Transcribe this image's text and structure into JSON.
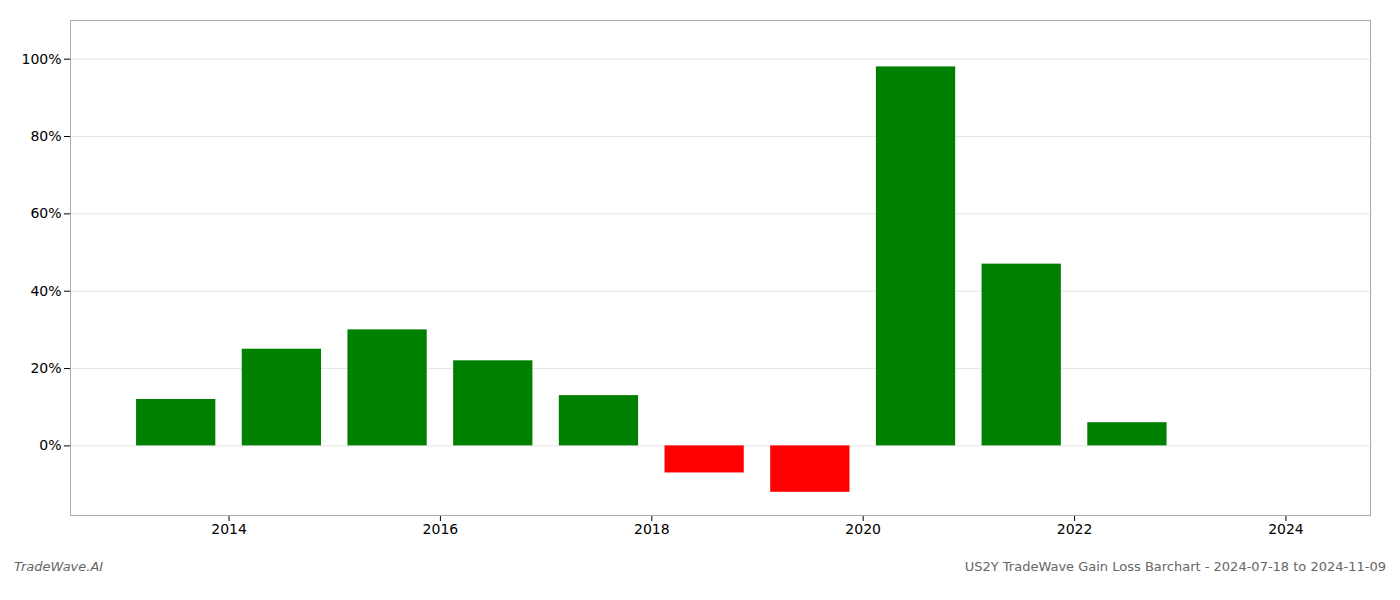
{
  "chart_data": {
    "type": "bar",
    "title": "US2Y TradeWave Gain Loss Barchart - 2024-07-18 to 2024-11-09",
    "annotations": [
      "TradeWave.AI"
    ],
    "x": [
      2013.5,
      2014.5,
      2015.5,
      2016.5,
      2017.5,
      2018.5,
      2019.5,
      2020.5,
      2021.5,
      2022.5,
      2023.5
    ],
    "values": [
      0.12,
      0.25,
      0.3,
      0.22,
      0.13,
      -0.07,
      -0.12,
      0.98,
      0.47,
      0.06,
      0.0
    ],
    "colors": [
      "#008000",
      "#008000",
      "#008000",
      "#008000",
      "#008000",
      "#ff0000",
      "#ff0000",
      "#008000",
      "#008000",
      "#008000",
      "#008000"
    ],
    "xlim": [
      2012.5,
      2024.8
    ],
    "xticks": [
      2014,
      2016,
      2018,
      2020,
      2022,
      2024
    ],
    "ylim": [
      -0.18,
      1.1
    ],
    "yticks": [
      {
        "value": 0.0,
        "label": "0%"
      },
      {
        "value": 0.2,
        "label": "20%"
      },
      {
        "value": 0.4,
        "label": "40%"
      },
      {
        "value": 0.6,
        "label": "60%"
      },
      {
        "value": 0.8,
        "label": "80%"
      },
      {
        "value": 1.0,
        "label": "100%"
      }
    ],
    "grid": true
  }
}
